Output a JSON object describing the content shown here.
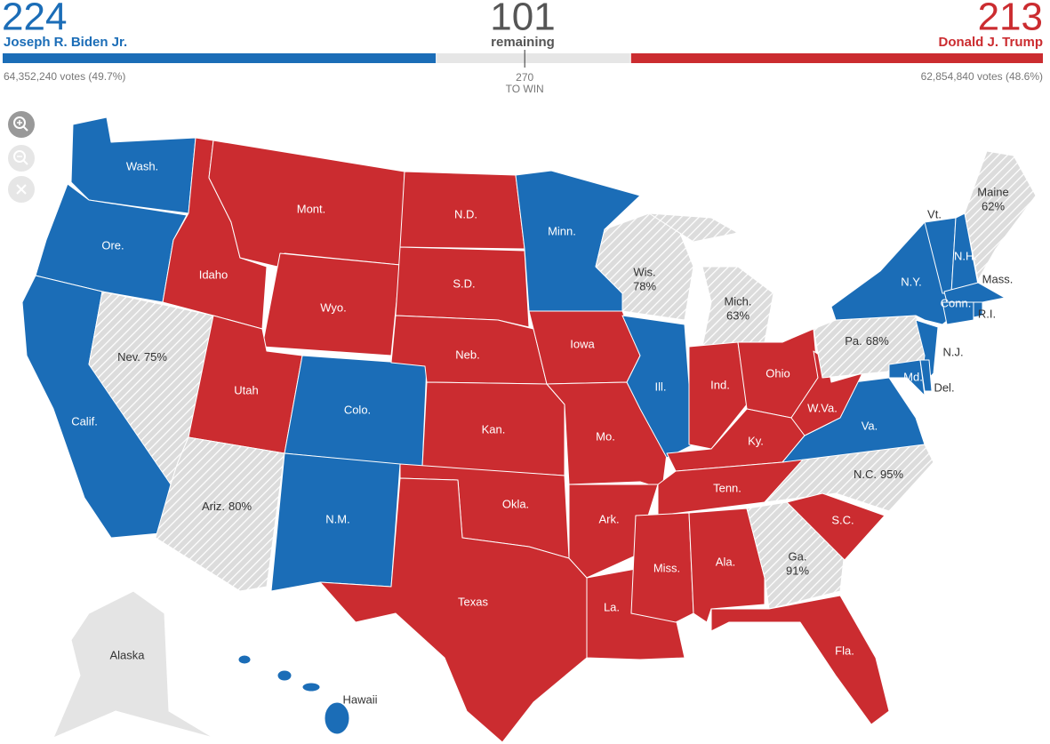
{
  "header": {
    "biden": {
      "electoral_votes": 224,
      "name": "Joseph R. Biden Jr.",
      "popular": "64,352,240 votes (49.7%)"
    },
    "remaining": {
      "count": 101,
      "label": "remaining"
    },
    "trump": {
      "electoral_votes": 213,
      "name": "Donald J. Trump",
      "popular": "62,854,840 votes (48.6%)"
    },
    "threshold": {
      "value": 270,
      "label": "TO WIN"
    }
  },
  "colors": {
    "dem": "#1b6db7",
    "rep": "#cb2c30",
    "pending": "#dcdcdc",
    "none": "#e4e4e4"
  },
  "map": {
    "states": [
      {
        "label": "Wash.",
        "party": "dem"
      },
      {
        "label": "Ore.",
        "party": "dem"
      },
      {
        "label": "Calif.",
        "party": "dem"
      },
      {
        "label": "Nev.",
        "party": "pending",
        "reporting": "75%"
      },
      {
        "label": "Idaho",
        "party": "rep"
      },
      {
        "label": "Mont.",
        "party": "rep"
      },
      {
        "label": "Wyo.",
        "party": "rep"
      },
      {
        "label": "Utah",
        "party": "rep"
      },
      {
        "label": "Ariz.",
        "party": "pending",
        "reporting": "80%"
      },
      {
        "label": "Colo.",
        "party": "dem"
      },
      {
        "label": "N.M.",
        "party": "dem"
      },
      {
        "label": "N.D.",
        "party": "rep"
      },
      {
        "label": "S.D.",
        "party": "rep"
      },
      {
        "label": "Neb.",
        "party": "rep"
      },
      {
        "label": "Kan.",
        "party": "rep"
      },
      {
        "label": "Okla.",
        "party": "rep"
      },
      {
        "label": "Texas",
        "party": "rep"
      },
      {
        "label": "Minn.",
        "party": "dem"
      },
      {
        "label": "Iowa",
        "party": "rep"
      },
      {
        "label": "Mo.",
        "party": "rep"
      },
      {
        "label": "Ark.",
        "party": "rep"
      },
      {
        "label": "La.",
        "party": "rep"
      },
      {
        "label": "Wis.",
        "party": "pending",
        "reporting": "78%"
      },
      {
        "label": "Ill.",
        "party": "dem"
      },
      {
        "label": "Mich.",
        "party": "pending",
        "reporting": "63%"
      },
      {
        "label": "Ind.",
        "party": "rep"
      },
      {
        "label": "Ohio",
        "party": "rep"
      },
      {
        "label": "Ky.",
        "party": "rep"
      },
      {
        "label": "Tenn.",
        "party": "rep"
      },
      {
        "label": "Miss.",
        "party": "rep"
      },
      {
        "label": "Ala.",
        "party": "rep"
      },
      {
        "label": "Ga.",
        "party": "pending",
        "reporting": "91%"
      },
      {
        "label": "Fla.",
        "party": "rep"
      },
      {
        "label": "N.C.",
        "party": "pending",
        "reporting": "95%"
      },
      {
        "label": "S.C.",
        "party": "rep"
      },
      {
        "label": "Va.",
        "party": "dem"
      },
      {
        "label": "W.Va.",
        "party": "rep"
      },
      {
        "label": "Pa.",
        "party": "pending",
        "reporting": "68%"
      },
      {
        "label": "N.Y.",
        "party": "dem"
      },
      {
        "label": "N.J.",
        "party": "dem"
      },
      {
        "label": "Md.",
        "party": "dem"
      },
      {
        "label": "Del.",
        "party": "dem"
      },
      {
        "label": "Vt.",
        "party": "dem"
      },
      {
        "label": "N.H.",
        "party": "dem"
      },
      {
        "label": "Maine",
        "party": "pending",
        "reporting": "62%"
      },
      {
        "label": "Mass.",
        "party": "dem"
      },
      {
        "label": "Conn.",
        "party": "dem"
      },
      {
        "label": "R.I.",
        "party": "dem"
      },
      {
        "label": "Alaska",
        "party": "none"
      },
      {
        "label": "Hawaii",
        "party": "dem"
      }
    ]
  }
}
